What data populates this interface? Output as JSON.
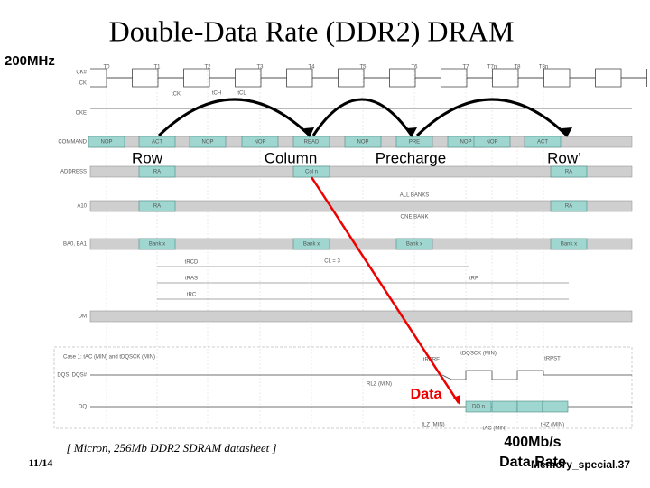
{
  "title": "Double-Data Rate (DDR2) DRAM",
  "clock_note": "200MHz",
  "labels": {
    "row": "Row",
    "column": "Column",
    "precharge": "Precharge",
    "row2": "Row’",
    "data": "Data"
  },
  "citation": "[ Micron, 256Mb DDR2 SDRAM datasheet ]",
  "date": "11/14",
  "rate": "400Mb/s",
  "rate_label": "Data Rate",
  "slide_id": "Memory_special.37",
  "diagram": {
    "clocks": [
      "T0",
      "T1",
      "T2",
      "T3",
      "T4",
      "T5",
      "T6",
      "T7",
      "T7n",
      "T8",
      "T8n"
    ],
    "signals": [
      "CK#",
      "CK",
      "CKE",
      "COMMAND",
      "ADDRESS",
      "A10",
      "BA0, BA1",
      "DM",
      "DQS, DQS#",
      "DQ"
    ],
    "commands": [
      "NOP",
      "ACT",
      "NOP",
      "NOP",
      "READ",
      "NOP",
      "PRE",
      "NOP",
      "NOP",
      "ACT"
    ],
    "address": [
      "RA",
      "Col n",
      "RA"
    ],
    "a10": [
      "RA",
      "ALL BANKS",
      "ONE BANK",
      "RA"
    ],
    "bank": [
      "Bank x",
      "Bank x",
      "Bank x",
      "Bank x"
    ],
    "timings": [
      "tCK",
      "tCH",
      "tCL",
      "tRCD",
      "tRAS",
      "tRC",
      "CL = 3",
      "tRP",
      "tRPRE",
      "tDQSCK (MIN)",
      "tRPST",
      "RLZ (MIN)",
      "tLZ (MIN)",
      "tAC (MIN)",
      "tHZ (MIN)"
    ],
    "case": "Case 1: tAC (MIN) and tDQSCK (MIN)",
    "dq": [
      "DO n"
    ]
  }
}
